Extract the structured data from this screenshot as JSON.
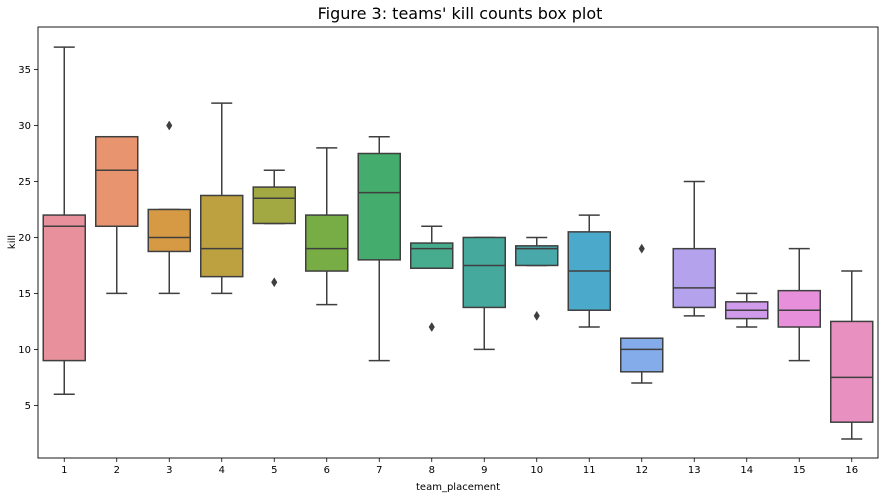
{
  "chart_data": {
    "type": "box",
    "title": "Figure 3: teams' kill counts box plot",
    "xlabel": "team_placement",
    "ylabel": "kill",
    "ylim": [
      0.3,
      38.8
    ],
    "yticks": [
      5,
      10,
      15,
      20,
      25,
      30,
      35
    ],
    "categories": [
      "1",
      "2",
      "3",
      "4",
      "5",
      "6",
      "7",
      "8",
      "9",
      "10",
      "11",
      "12",
      "13",
      "14",
      "15",
      "16"
    ],
    "boxes": [
      {
        "category": "1",
        "whisker_low": 6,
        "q1": 9,
        "median": 21,
        "q3": 22,
        "whisker_high": 37,
        "outliers": [],
        "color": "#e8919d"
      },
      {
        "category": "2",
        "whisker_low": 15,
        "q1": 21,
        "median": 26,
        "q3": 29,
        "whisker_high": 29,
        "outliers": [],
        "color": "#e8956f"
      },
      {
        "category": "3",
        "whisker_low": 15,
        "q1": 18.75,
        "median": 20,
        "q3": 22.5,
        "whisker_high": 22.5,
        "outliers": [
          30
        ],
        "color": "#d69a45"
      },
      {
        "category": "4",
        "whisker_low": 15,
        "q1": 16.5,
        "median": 19,
        "q3": 23.75,
        "whisker_high": 32,
        "outliers": [],
        "color": "#bda040"
      },
      {
        "category": "5",
        "whisker_low": 21.25,
        "q1": 21.25,
        "median": 23.5,
        "q3": 24.5,
        "whisker_high": 26,
        "outliers": [
          16
        ],
        "color": "#a2a842"
      },
      {
        "category": "6",
        "whisker_low": 14,
        "q1": 17,
        "median": 19,
        "q3": 22,
        "whisker_high": 28,
        "outliers": [],
        "color": "#78ad46"
      },
      {
        "category": "7",
        "whisker_low": 9,
        "q1": 18,
        "median": 24,
        "q3": 27.5,
        "whisker_high": 29,
        "outliers": [],
        "color": "#44ac6c"
      },
      {
        "category": "8",
        "whisker_low": 17.25,
        "q1": 17.25,
        "median": 19,
        "q3": 19.5,
        "whisker_high": 21,
        "outliers": [
          12
        ],
        "color": "#47ac8e"
      },
      {
        "category": "9",
        "whisker_low": 10,
        "q1": 13.75,
        "median": 17.5,
        "q3": 20,
        "whisker_high": 20,
        "outliers": [],
        "color": "#46a99e"
      },
      {
        "category": "10",
        "whisker_low": 17.5,
        "q1": 17.5,
        "median": 19,
        "q3": 19.25,
        "whisker_high": 20,
        "outliers": [
          13
        ],
        "color": "#48a8aa"
      },
      {
        "category": "11",
        "whisker_low": 12,
        "q1": 13.5,
        "median": 17,
        "q3": 20.5,
        "whisker_high": 22,
        "outliers": [],
        "color": "#4baacb"
      },
      {
        "category": "12",
        "whisker_low": 7,
        "q1": 8,
        "median": 10,
        "q3": 11,
        "whisker_high": 11,
        "outliers": [
          19
        ],
        "color": "#84acea"
      },
      {
        "category": "13",
        "whisker_low": 13,
        "q1": 13.75,
        "median": 15.5,
        "q3": 19,
        "whisker_high": 25,
        "outliers": [],
        "color": "#b4a2ec"
      },
      {
        "category": "14",
        "whisker_low": 12,
        "q1": 12.75,
        "median": 13.5,
        "q3": 14.25,
        "whisker_high": 15,
        "outliers": [],
        "color": "#cf9bea"
      },
      {
        "category": "15",
        "whisker_low": 9,
        "q1": 12,
        "median": 13.5,
        "q3": 15.25,
        "whisker_high": 19,
        "outliers": [],
        "color": "#e88fdb"
      },
      {
        "category": "16",
        "whisker_low": 2,
        "q1": 3.5,
        "median": 7.5,
        "q3": 12.5,
        "whisker_high": 17,
        "outliers": [],
        "color": "#e890c0"
      }
    ],
    "line_color": "#3f3f3f",
    "grid": false
  }
}
